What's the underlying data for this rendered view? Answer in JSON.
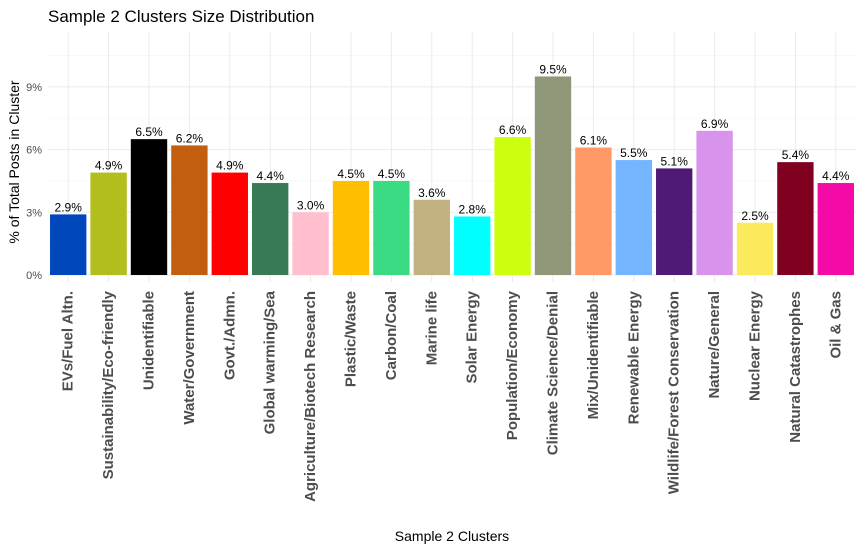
{
  "chart_data": {
    "type": "bar",
    "title": "Sample 2 Clusters Size Distribution",
    "xlabel": "Sample 2 Clusters",
    "ylabel": "% of Total Posts in Cluster",
    "ylim": [
      0,
      11.6
    ],
    "yticks": [
      0,
      3,
      6,
      9
    ],
    "ytick_labels": [
      "0%",
      "3%",
      "6%",
      "9%"
    ],
    "grid": true,
    "legend": "none",
    "categories": [
      "EVs/Fuel Altn.",
      "Sustainability/Eco-friendly",
      "Unidentifiable",
      "Water/Government",
      "Govt./Admn.",
      "Global warming/Sea",
      "Agriculture/Biotech Research",
      "Plastic/Waste",
      "Carbon/Coal",
      "Marine life",
      "Solar Energy",
      "Population/Economy",
      "Climate Science/Denial",
      "Mix/Unidentifiable",
      "Renewable Energy",
      "Wildlife/Forest Conservation",
      "Nature/General",
      "Nuclear Energy",
      "Natural Catastrophes",
      "Oil & Gas"
    ],
    "values": [
      2.9,
      4.9,
      6.5,
      6.2,
      4.9,
      4.4,
      3.0,
      4.5,
      4.5,
      3.6,
      2.8,
      6.6,
      9.5,
      6.1,
      5.5,
      5.1,
      6.9,
      2.5,
      5.4,
      4.4
    ],
    "data_labels": [
      "2.9%",
      "4.9%",
      "6.5%",
      "6.2%",
      "4.9%",
      "4.4%",
      "3.0%",
      "4.5%",
      "4.5%",
      "3.6%",
      "2.8%",
      "6.6%",
      "9.5%",
      "6.1%",
      "5.5%",
      "5.1%",
      "6.9%",
      "2.5%",
      "5.4%",
      "4.4%"
    ],
    "colors": [
      "#0047BB",
      "#B2BE1B",
      "#000000",
      "#C45E0F",
      "#FF0000",
      "#377A55",
      "#FFBFCF",
      "#FFBF00",
      "#3ADB82",
      "#C2B280",
      "#00FFFF",
      "#CCFF0F",
      "#8F9779",
      "#FF9966",
      "#73B5FF",
      "#4F1A76",
      "#D893EC",
      "#FAEA5C",
      "#800020",
      "#F40AA6"
    ]
  }
}
